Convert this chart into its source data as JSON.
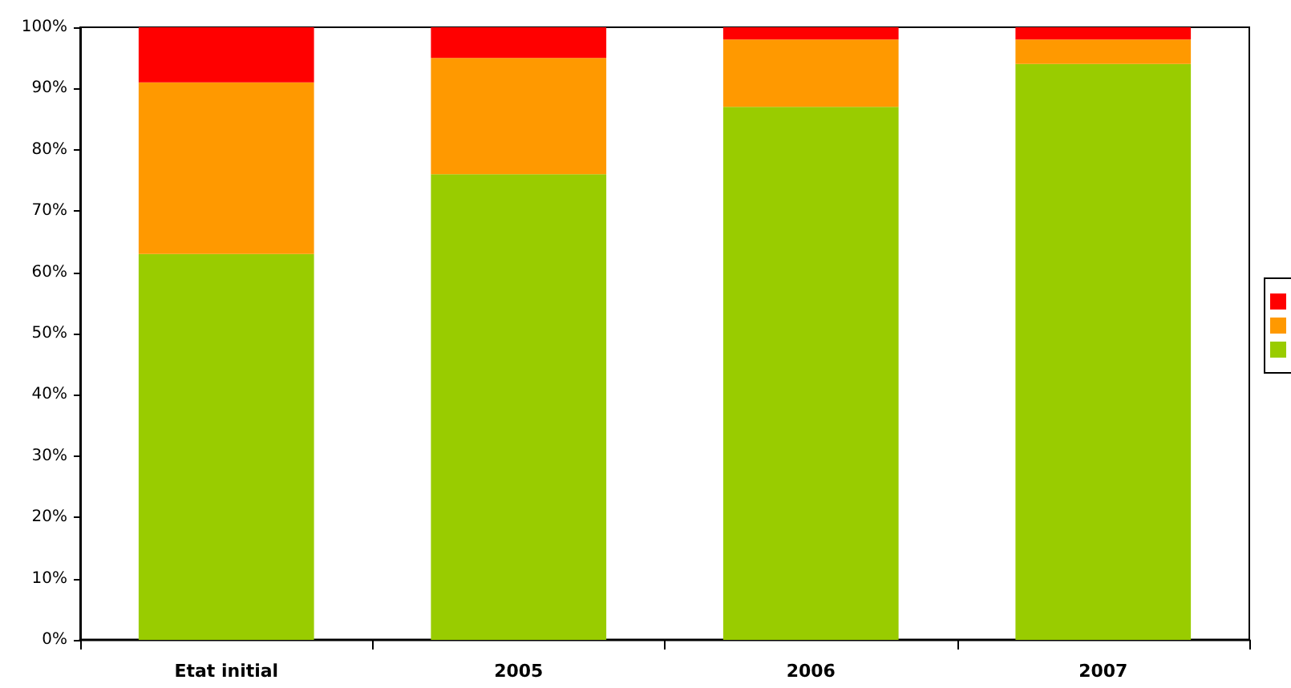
{
  "chart_data": {
    "type": "bar",
    "stacked": true,
    "categories": [
      "Etat initial",
      "2005",
      "2006",
      "2007"
    ],
    "series": [
      {
        "color": "#99cc00",
        "values": [
          63,
          76,
          87,
          94
        ]
      },
      {
        "color": "#ff9900",
        "values": [
          28,
          19,
          11,
          4
        ]
      },
      {
        "color": "#ff0000",
        "values": [
          9,
          5,
          2,
          2
        ]
      }
    ],
    "ylim": [
      0,
      100
    ],
    "yticks": [
      {
        "value": 0,
        "label": "0%"
      },
      {
        "value": 10,
        "label": "10%"
      },
      {
        "value": 20,
        "label": "20%"
      },
      {
        "value": 30,
        "label": "30%"
      },
      {
        "value": 40,
        "label": "40%"
      },
      {
        "value": 50,
        "label": "50%"
      },
      {
        "value": 60,
        "label": "60%"
      },
      {
        "value": 70,
        "label": "70%"
      },
      {
        "value": 80,
        "label": "80%"
      },
      {
        "value": 90,
        "label": "90%"
      },
      {
        "value": 100,
        "label": "100%"
      }
    ],
    "grid": false
  }
}
